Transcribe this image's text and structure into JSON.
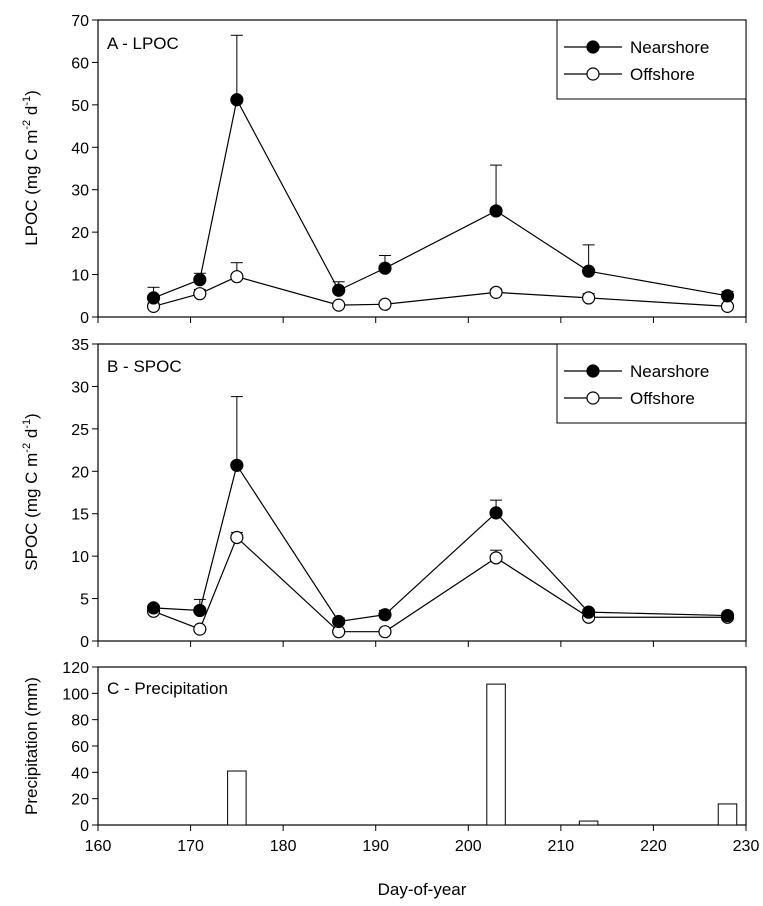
{
  "chart_data": [
    {
      "type": "line",
      "panel_label": "A - LPOC",
      "ylabel": "LPOC (mg C m",
      "ylabel_exp1": "-2",
      "ylabel_mid": " d",
      "ylabel_exp2": "-1",
      "ylabel_end": ")",
      "xlim": [
        160,
        230
      ],
      "ylim": [
        0,
        70
      ],
      "yticks": [
        0,
        10,
        20,
        30,
        40,
        50,
        60,
        70
      ],
      "legend_position": "top-right",
      "series": [
        {
          "name": "Nearshore",
          "marker": "filled-circle",
          "x": [
            166,
            171,
            175,
            186,
            191,
            203,
            213,
            228
          ],
          "y": [
            4.5,
            8.8,
            51.2,
            6.3,
            11.5,
            25.0,
            10.8,
            5.0
          ],
          "err": [
            2.5,
            1.5,
            15.2,
            2.0,
            3.0,
            10.8,
            6.2,
            1.0
          ]
        },
        {
          "name": "Offshore",
          "marker": "open-circle",
          "x": [
            166,
            171,
            175,
            186,
            191,
            203,
            213,
            228
          ],
          "y": [
            2.5,
            5.5,
            9.5,
            2.8,
            3.0,
            5.8,
            4.5,
            2.5
          ],
          "err": [
            0.8,
            1.0,
            3.3,
            0.5,
            0.4,
            0.8,
            1.0,
            0.5
          ]
        }
      ]
    },
    {
      "type": "line",
      "panel_label": "B - SPOC",
      "ylabel": "SPOC (mg C m",
      "ylabel_exp1": "-2",
      "ylabel_mid": " d",
      "ylabel_exp2": "-1",
      "ylabel_end": ")",
      "xlim": [
        160,
        230
      ],
      "ylim": [
        0,
        35
      ],
      "yticks": [
        0,
        5,
        10,
        15,
        20,
        25,
        30,
        35
      ],
      "legend_position": "top-right",
      "series": [
        {
          "name": "Nearshore",
          "marker": "filled-circle",
          "x": [
            166,
            171,
            175,
            186,
            191,
            203,
            213,
            228
          ],
          "y": [
            3.9,
            3.6,
            20.7,
            2.3,
            3.1,
            15.1,
            3.4,
            3.0
          ],
          "err": [
            0.3,
            1.3,
            8.1,
            0.4,
            0.5,
            1.5,
            0.3,
            0.2
          ]
        },
        {
          "name": "Offshore",
          "marker": "open-circle",
          "x": [
            166,
            171,
            175,
            186,
            191,
            203,
            213,
            228
          ],
          "y": [
            3.5,
            1.4,
            12.2,
            1.1,
            1.1,
            9.8,
            2.8,
            2.8
          ],
          "err": [
            0.3,
            0.3,
            0.6,
            0.2,
            0.2,
            0.9,
            0.3,
            0.3
          ]
        }
      ]
    },
    {
      "type": "bar",
      "panel_label": "C - Precipitation",
      "ylabel": "Precipitation (mm)",
      "xlabel": "Day-of-year",
      "xlim": [
        160,
        230
      ],
      "ylim": [
        0,
        120
      ],
      "yticks": [
        0,
        20,
        40,
        60,
        80,
        100,
        120
      ],
      "xticks": [
        160,
        170,
        180,
        190,
        200,
        210,
        220,
        230
      ],
      "x": [
        175,
        203,
        213,
        228
      ],
      "values": [
        41,
        107,
        3,
        16
      ],
      "bar_width": 2
    }
  ]
}
